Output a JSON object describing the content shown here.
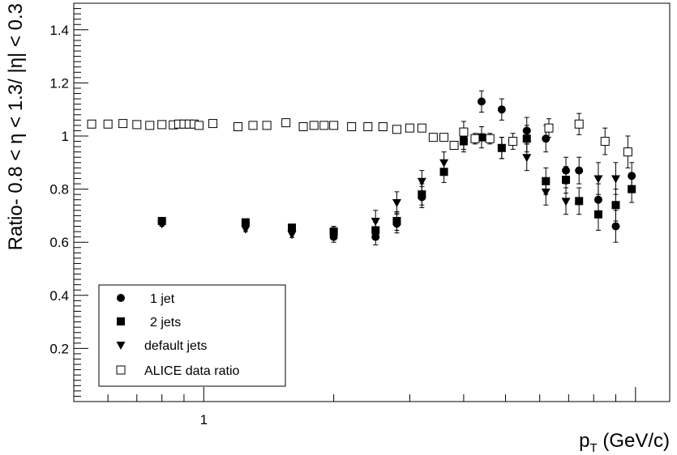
{
  "chart_data": {
    "type": "scatter",
    "xlabel_main": "p",
    "xlabel_sub": "T",
    "xlabel_unit": " (GeV/c)",
    "ylabel": "Ratio- 0.8 < η < 1.3/ |η| < 0.3",
    "x_scale": "log",
    "xlim": [
      0.5,
      12
    ],
    "ylim": [
      0,
      1.5
    ],
    "grid": false,
    "legend_placement": "bottom-left",
    "x_tick_labels": [
      {
        "value": 1,
        "label": "1"
      }
    ],
    "y_ticks": [
      {
        "value": 0.2,
        "label": "0.2"
      },
      {
        "value": 0.4,
        "label": "0.4"
      },
      {
        "value": 0.6,
        "label": "0.6"
      },
      {
        "value": 0.8,
        "label": "0.8"
      },
      {
        "value": 1.0,
        "label": "1"
      },
      {
        "value": 1.2,
        "label": "1.2"
      },
      {
        "value": 1.4,
        "label": "1.4"
      }
    ],
    "series": [
      {
        "name": "1 jet",
        "marker": "circle",
        "points": [
          {
            "x": 0.8,
            "y": 0.675,
            "err": 0.01
          },
          {
            "x": 1.25,
            "y": 0.672,
            "err": 0.01
          },
          {
            "x": 1.6,
            "y": 0.65,
            "err": 0.012
          },
          {
            "x": 2.0,
            "y": 0.62,
            "err": 0.02
          },
          {
            "x": 2.5,
            "y": 0.62,
            "err": 0.03
          },
          {
            "x": 2.8,
            "y": 0.67,
            "err": 0.035
          },
          {
            "x": 3.2,
            "y": 0.77,
            "err": 0.04
          },
          {
            "x": 4.0,
            "y": 1.015,
            "err": 0.04
          },
          {
            "x": 4.4,
            "y": 1.13,
            "err": 0.04
          },
          {
            "x": 4.9,
            "y": 1.1,
            "err": 0.04
          },
          {
            "x": 5.6,
            "y": 1.02,
            "err": 0.05
          },
          {
            "x": 6.2,
            "y": 0.99,
            "err": 0.05
          },
          {
            "x": 6.9,
            "y": 0.87,
            "err": 0.05
          },
          {
            "x": 7.4,
            "y": 0.87,
            "err": 0.05
          },
          {
            "x": 8.2,
            "y": 0.76,
            "err": 0.06
          },
          {
            "x": 9.0,
            "y": 0.66,
            "err": 0.06
          },
          {
            "x": 9.8,
            "y": 0.85,
            "err": 0.05
          }
        ]
      },
      {
        "name": "2 jets",
        "marker": "square",
        "points": [
          {
            "x": 0.8,
            "y": 0.68,
            "err": 0.01
          },
          {
            "x": 1.25,
            "y": 0.675,
            "err": 0.01
          },
          {
            "x": 1.6,
            "y": 0.655,
            "err": 0.012
          },
          {
            "x": 2.0,
            "y": 0.64,
            "err": 0.02
          },
          {
            "x": 2.5,
            "y": 0.645,
            "err": 0.03
          },
          {
            "x": 2.8,
            "y": 0.68,
            "err": 0.035
          },
          {
            "x": 3.2,
            "y": 0.78,
            "err": 0.04
          },
          {
            "x": 3.6,
            "y": 0.865,
            "err": 0.04
          },
          {
            "x": 4.0,
            "y": 0.98,
            "err": 0.04
          },
          {
            "x": 4.4,
            "y": 0.995,
            "err": 0.04
          },
          {
            "x": 4.9,
            "y": 0.955,
            "err": 0.04
          },
          {
            "x": 5.6,
            "y": 0.99,
            "err": 0.05
          },
          {
            "x": 6.2,
            "y": 0.83,
            "err": 0.05
          },
          {
            "x": 6.9,
            "y": 0.835,
            "err": 0.05
          },
          {
            "x": 7.4,
            "y": 0.755,
            "err": 0.05
          },
          {
            "x": 8.2,
            "y": 0.705,
            "err": 0.06
          },
          {
            "x": 9.0,
            "y": 0.74,
            "err": 0.06
          },
          {
            "x": 9.8,
            "y": 0.8,
            "err": 0.05
          }
        ]
      },
      {
        "name": "default jets",
        "marker": "triangle-down",
        "points": [
          {
            "x": 0.8,
            "y": 0.67,
            "err": 0.01
          },
          {
            "x": 1.25,
            "y": 0.65,
            "err": 0.01
          },
          {
            "x": 1.6,
            "y": 0.63,
            "err": 0.012
          },
          {
            "x": 2.0,
            "y": 0.635,
            "err": 0.02
          },
          {
            "x": 2.5,
            "y": 0.68,
            "err": 0.04
          },
          {
            "x": 2.8,
            "y": 0.75,
            "err": 0.04
          },
          {
            "x": 3.2,
            "y": 0.83,
            "err": 0.04
          },
          {
            "x": 3.6,
            "y": 0.9,
            "err": 0.04
          },
          {
            "x": 4.0,
            "y": 0.99,
            "err": 0.04
          },
          {
            "x": 4.9,
            "y": 0.955,
            "err": 0.04
          },
          {
            "x": 5.6,
            "y": 0.92,
            "err": 0.05
          },
          {
            "x": 6.2,
            "y": 0.79,
            "err": 0.05
          },
          {
            "x": 6.9,
            "y": 0.755,
            "err": 0.05
          },
          {
            "x": 8.2,
            "y": 0.84,
            "err": 0.06
          },
          {
            "x": 9.0,
            "y": 0.84,
            "err": 0.06
          }
        ]
      },
      {
        "name": "ALICE data ratio",
        "marker": "open-square",
        "points": [
          {
            "x": 0.55,
            "y": 1.045,
            "err": 0
          },
          {
            "x": 0.6,
            "y": 1.045,
            "err": 0
          },
          {
            "x": 0.65,
            "y": 1.047,
            "err": 0
          },
          {
            "x": 0.7,
            "y": 1.043,
            "err": 0
          },
          {
            "x": 0.75,
            "y": 1.04,
            "err": 0
          },
          {
            "x": 0.8,
            "y": 1.043,
            "err": 0
          },
          {
            "x": 0.85,
            "y": 1.042,
            "err": 0
          },
          {
            "x": 0.875,
            "y": 1.045,
            "err": 0
          },
          {
            "x": 0.9,
            "y": 1.045,
            "err": 0
          },
          {
            "x": 0.925,
            "y": 1.045,
            "err": 0
          },
          {
            "x": 0.95,
            "y": 1.045,
            "err": 0
          },
          {
            "x": 0.975,
            "y": 1.04,
            "err": 0
          },
          {
            "x": 1.05,
            "y": 1.047,
            "err": 0
          },
          {
            "x": 1.2,
            "y": 1.035,
            "err": 0
          },
          {
            "x": 1.3,
            "y": 1.04,
            "err": 0
          },
          {
            "x": 1.4,
            "y": 1.04,
            "err": 0
          },
          {
            "x": 1.55,
            "y": 1.05,
            "err": 0
          },
          {
            "x": 1.7,
            "y": 1.035,
            "err": 0
          },
          {
            "x": 1.8,
            "y": 1.04,
            "err": 0
          },
          {
            "x": 1.9,
            "y": 1.04,
            "err": 0
          },
          {
            "x": 2.0,
            "y": 1.04,
            "err": 0
          },
          {
            "x": 2.2,
            "y": 1.035,
            "err": 0
          },
          {
            "x": 2.4,
            "y": 1.035,
            "err": 0
          },
          {
            "x": 2.6,
            "y": 1.035,
            "err": 0
          },
          {
            "x": 2.8,
            "y": 1.025,
            "err": 0
          },
          {
            "x": 3.0,
            "y": 1.03,
            "err": 0
          },
          {
            "x": 3.2,
            "y": 1.03,
            "err": 0
          },
          {
            "x": 3.4,
            "y": 0.995,
            "err": 0
          },
          {
            "x": 3.6,
            "y": 0.995,
            "err": 0
          },
          {
            "x": 3.8,
            "y": 0.965,
            "err": 0.01
          },
          {
            "x": 4.0,
            "y": 1.015,
            "err": 0.01
          },
          {
            "x": 4.25,
            "y": 0.99,
            "err": 0.02
          },
          {
            "x": 4.6,
            "y": 0.99,
            "err": 0.02
          },
          {
            "x": 5.2,
            "y": 0.98,
            "err": 0.03
          },
          {
            "x": 6.3,
            "y": 1.03,
            "err": 0.035
          },
          {
            "x": 7.4,
            "y": 1.045,
            "err": 0.04
          },
          {
            "x": 8.5,
            "y": 0.98,
            "err": 0.05
          },
          {
            "x": 9.6,
            "y": 0.94,
            "err": 0.06
          }
        ]
      }
    ]
  }
}
